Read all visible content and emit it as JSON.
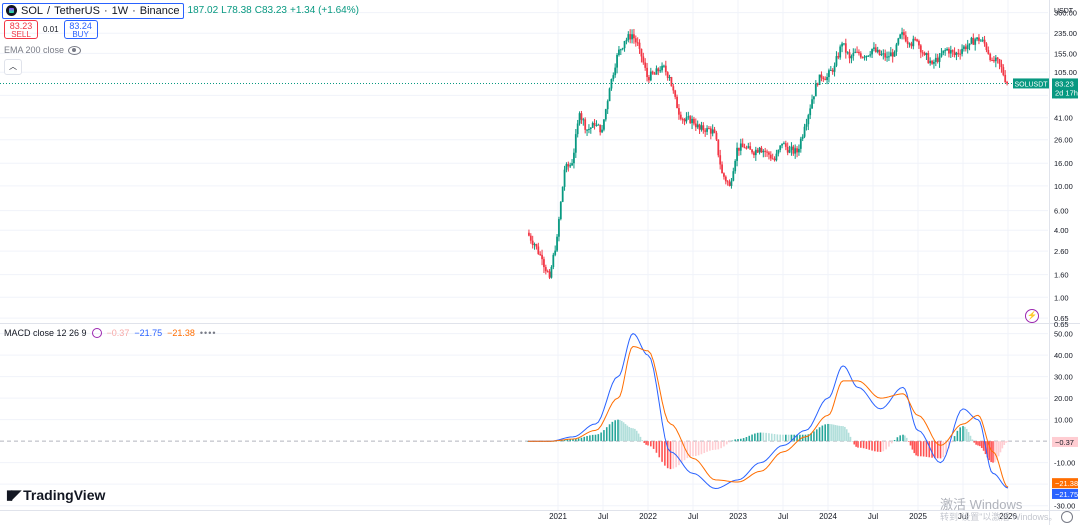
{
  "header": {
    "symbol": "SOL",
    "quote": "TetherUS",
    "interval": "1W",
    "exchange": "Binance",
    "open": "187.02",
    "low_label": "L",
    "low": "78.38",
    "close_label": "C",
    "close": "83.23",
    "change": "+1.34 (+1.64%)"
  },
  "trade": {
    "sell_price": "83.23",
    "sell_label": "SELL",
    "spread": "0.01",
    "buy_price": "83.24",
    "buy_label": "BUY"
  },
  "indicators": {
    "ema_label": "EMA 200 close",
    "macd_label": "MACD close 12 26 9",
    "macd_hist": "−0.37",
    "macd_line": "−21.75",
    "macd_signal": "−21.38"
  },
  "price_axis": {
    "currency": "USDT",
    "ticks": [
      "360.00",
      "235.00",
      "155.00",
      "105.00",
      "65.00",
      "41.00",
      "26.00",
      "16.00",
      "10.00",
      "6.00",
      "4.00",
      "2.60",
      "1.60",
      "1.00",
      "0.65"
    ],
    "ticker_label": "SOLUSDT",
    "last_price": "83.23",
    "countdown": "2d 17h"
  },
  "macd_axis": {
    "top_cut": "0.65",
    "ticks": [
      "50.00",
      "40.00",
      "30.00",
      "20.00",
      "10.00",
      "-10.00",
      "-20.00",
      "-30.00"
    ],
    "hist_badge": "−0.37",
    "signal_badge": "−21.38",
    "macd_badge": "−21.75"
  },
  "time_axis": [
    "2021",
    "Jul",
    "2022",
    "Jul",
    "2023",
    "Jul",
    "2024",
    "Jul",
    "2025",
    "Jul",
    "2026"
  ],
  "branding": {
    "logo_text": "TradingView",
    "watermark": "激活 Windows",
    "watermark_sub": "转到\"设置\"以激活 Windows。"
  },
  "colors": {
    "up": "#089981",
    "down": "#f23645",
    "macd": "#2962ff",
    "signal": "#ff6d00",
    "accent": "#2962ff"
  },
  "chart_data": [
    {
      "type": "candlestick",
      "title": "SOL / TetherUS · 1W · Binance",
      "scale": "log",
      "ylim": [
        0.6,
        380
      ],
      "x": [
        "2020-09",
        "2020-10",
        "2020-11",
        "2020-12",
        "2021-01",
        "2021-02",
        "2021-03",
        "2021-04",
        "2021-05",
        "2021-06",
        "2021-07",
        "2021-08",
        "2021-09",
        "2021-10",
        "2021-11",
        "2021-12",
        "2022-01",
        "2022-02",
        "2022-03",
        "2022-04",
        "2022-05",
        "2022-06",
        "2022-07",
        "2022-08",
        "2022-09",
        "2022-10",
        "2022-11",
        "2022-12",
        "2023-01",
        "2023-02",
        "2023-03",
        "2023-04",
        "2023-05",
        "2023-06",
        "2023-07",
        "2023-08",
        "2023-09",
        "2023-10",
        "2023-11",
        "2023-12",
        "2024-01",
        "2024-02",
        "2024-03",
        "2024-04",
        "2024-05",
        "2024-06",
        "2024-07",
        "2024-08",
        "2024-09",
        "2024-10",
        "2024-11",
        "2024-12",
        "2025-01",
        "2025-02",
        "2025-03",
        "2025-04",
        "2025-05",
        "2025-06",
        "2025-07",
        "2025-08",
        "2025-09",
        "2025-10",
        "2025-11",
        "2025-12",
        "2026-01"
      ],
      "close": [
        3.8,
        3.0,
        2.2,
        1.5,
        3.5,
        14,
        16,
        45,
        32,
        35,
        32,
        75,
        150,
        200,
        230,
        170,
        95,
        100,
        120,
        95,
        50,
        38,
        40,
        32,
        33,
        30,
        13,
        10,
        22,
        22,
        20,
        22,
        20,
        17,
        24,
        21,
        20,
        34,
        60,
        100,
        95,
        120,
        190,
        140,
        160,
        145,
        170,
        150,
        145,
        160,
        240,
        190,
        200,
        150,
        125,
        145,
        170,
        150,
        170,
        190,
        215,
        190,
        135,
        125,
        83.23
      ],
      "ylabel": "USDT"
    },
    {
      "type": "line",
      "title": "MACD close 12 26 9",
      "x": [
        "2020-09",
        "2020-12",
        "2021-03",
        "2021-06",
        "2021-09",
        "2021-11",
        "2022-01",
        "2022-04",
        "2022-07",
        "2022-10",
        "2023-01",
        "2023-04",
        "2023-07",
        "2023-10",
        "2024-01",
        "2024-03",
        "2024-05",
        "2024-08",
        "2024-11",
        "2025-01",
        "2025-04",
        "2025-07",
        "2025-09",
        "2025-11",
        "2026-01"
      ],
      "series": [
        {
          "name": "MACD",
          "values": [
            0,
            0,
            2,
            8,
            30,
            50,
            40,
            -5,
            -15,
            -22,
            -18,
            -10,
            -2,
            5,
            20,
            35,
            25,
            15,
            25,
            5,
            -10,
            15,
            10,
            -15,
            -21.75
          ]
        },
        {
          "name": "Signal",
          "values": [
            0,
            0,
            1,
            5,
            20,
            44,
            42,
            8,
            -8,
            -18,
            -19,
            -14,
            -5,
            2,
            12,
            28,
            28,
            20,
            22,
            12,
            -2,
            8,
            12,
            -5,
            -21.38
          ]
        }
      ],
      "ylim": [
        -32,
        54
      ]
    }
  ]
}
